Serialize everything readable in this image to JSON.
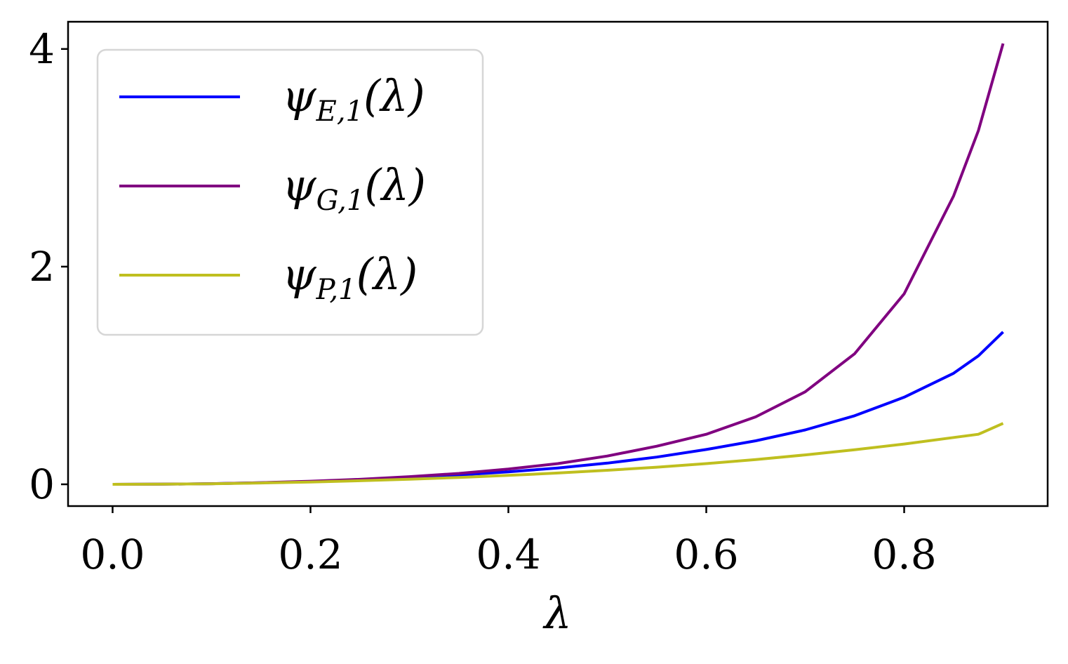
{
  "chart_data": {
    "type": "line",
    "title": "",
    "xlabel": "λ",
    "ylabel": "",
    "xlim": [
      -0.045,
      0.945
    ],
    "ylim": [
      -0.2,
      4.25
    ],
    "xticks": [
      0.0,
      0.2,
      0.4,
      0.6,
      0.8
    ],
    "xtick_labels": [
      "0.0",
      "0.2",
      "0.4",
      "0.6",
      "0.8"
    ],
    "yticks": [
      0,
      2,
      4
    ],
    "ytick_labels": [
      "0",
      "2",
      "4"
    ],
    "grid": false,
    "legend_position": "top-left",
    "x": [
      0.0,
      0.05,
      0.1,
      0.15,
      0.2,
      0.25,
      0.3,
      0.35,
      0.4,
      0.45,
      0.5,
      0.55,
      0.6,
      0.65,
      0.7,
      0.75,
      0.8,
      0.85,
      0.875,
      0.9
    ],
    "series": [
      {
        "name_main": "ψ",
        "name_sub": "E,1",
        "name_arg": "(λ)",
        "color": "#0000ff",
        "values": [
          0.0,
          0.001,
          0.006,
          0.014,
          0.025,
          0.04,
          0.06,
          0.085,
          0.115,
          0.15,
          0.195,
          0.25,
          0.32,
          0.4,
          0.5,
          0.63,
          0.8,
          1.02,
          1.18,
          1.4
        ]
      },
      {
        "name_main": "ψ",
        "name_sub": "G,1",
        "name_arg": "(λ)",
        "color": "#800080",
        "values": [
          0.0,
          0.001,
          0.006,
          0.015,
          0.028,
          0.046,
          0.07,
          0.1,
          0.14,
          0.19,
          0.26,
          0.35,
          0.46,
          0.62,
          0.85,
          1.2,
          1.75,
          2.65,
          3.25,
          4.05
        ]
      },
      {
        "name_main": "ψ",
        "name_sub": "P,1",
        "name_arg": "(λ)",
        "color": "#bfbf1f",
        "values": [
          0.0,
          0.001,
          0.005,
          0.012,
          0.021,
          0.033,
          0.047,
          0.063,
          0.082,
          0.104,
          0.129,
          0.157,
          0.19,
          0.227,
          0.27,
          0.317,
          0.37,
          0.43,
          0.46,
          0.56
        ]
      }
    ]
  }
}
